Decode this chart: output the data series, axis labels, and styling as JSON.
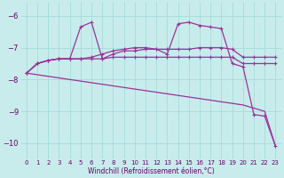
{
  "xlabel": "Windchill (Refroidissement éolien,°C)",
  "xlim": [
    -0.5,
    23.5
  ],
  "ylim": [
    -10.5,
    -5.6
  ],
  "yticks": [
    -10,
    -9,
    -8,
    -7,
    -6
  ],
  "xticks": [
    0,
    1,
    2,
    3,
    4,
    5,
    6,
    7,
    8,
    9,
    10,
    11,
    12,
    13,
    14,
    15,
    16,
    17,
    18,
    19,
    20,
    21,
    22,
    23
  ],
  "bg_color": "#c8ecec",
  "grid_color": "#aadddd",
  "line_color": "#993399",
  "diag_y": [
    -7.8,
    -7.85,
    -7.9,
    -7.95,
    -8.0,
    -8.05,
    -8.1,
    -8.15,
    -8.2,
    -8.25,
    -8.3,
    -8.35,
    -8.4,
    -8.45,
    -8.5,
    -8.55,
    -8.6,
    -8.65,
    -8.7,
    -8.75,
    -8.8,
    -8.9,
    -9.0,
    -10.1
  ],
  "line_peak_y": [
    -7.8,
    -7.5,
    -7.4,
    -7.35,
    -7.35,
    -6.35,
    -6.2,
    -7.35,
    -7.2,
    -7.1,
    -7.1,
    -7.05,
    -7.05,
    -7.2,
    -6.25,
    -6.2,
    -6.3,
    -6.35,
    -6.4,
    -7.5,
    -7.6,
    -9.1,
    -9.15,
    -10.1
  ],
  "line_flat_y": [
    -7.8,
    -7.5,
    -7.4,
    -7.35,
    -7.35,
    -7.35,
    -7.35,
    -7.35,
    -7.3,
    -7.3,
    -7.3,
    -7.3,
    -7.3,
    -7.3,
    -7.3,
    -7.3,
    -7.3,
    -7.3,
    -7.3,
    -7.3,
    -7.5,
    -7.5,
    -7.5,
    -7.5
  ],
  "line_mid_y": [
    -7.8,
    -7.5,
    -7.4,
    -7.35,
    -7.35,
    -7.35,
    -7.3,
    -7.2,
    -7.1,
    -7.05,
    -7.0,
    -7.0,
    -7.05,
    -7.05,
    -7.05,
    -7.05,
    -7.0,
    -7.0,
    -7.0,
    -7.05,
    -7.3,
    -7.3,
    -7.3,
    -7.3
  ]
}
